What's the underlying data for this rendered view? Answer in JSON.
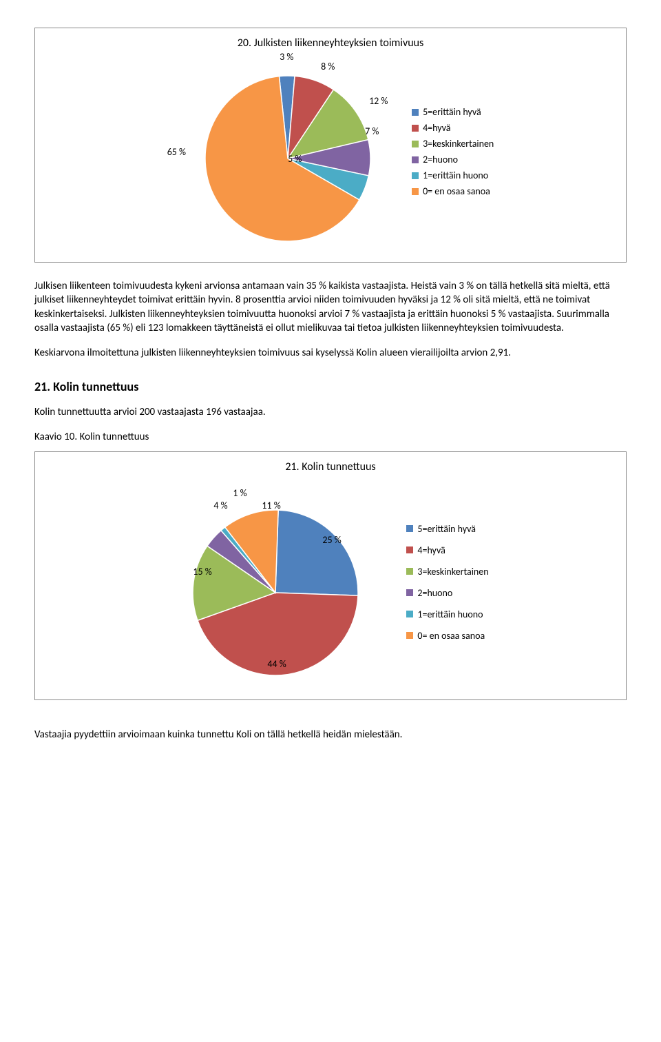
{
  "chart1": {
    "title": "20. Julkisten liikenneyhteyksien toimivuus",
    "type": "pie",
    "slices": [
      {
        "label": "3 %",
        "value": 3,
        "color": "#4f81bd"
      },
      {
        "label": "8 %",
        "value": 8,
        "color": "#c0504d"
      },
      {
        "label": "12 %",
        "value": 12,
        "color": "#9bbb59"
      },
      {
        "label": "7 %",
        "value": 7,
        "color": "#8064a2"
      },
      {
        "label": "5 %",
        "value": 5,
        "color": "#4bacc6"
      },
      {
        "label": "65 %",
        "value": 65,
        "color": "#f79646"
      }
    ],
    "legend": [
      {
        "label": "5=erittäin hyvä",
        "color": "#4f81bd"
      },
      {
        "label": "4=hyvä",
        "color": "#c0504d"
      },
      {
        "label": "3=keskinkertainen",
        "color": "#9bbb59"
      },
      {
        "label": "2=huono",
        "color": "#8064a2"
      },
      {
        "label": "1=erittäin huono",
        "color": "#4bacc6"
      },
      {
        "label": "0= en osaa sanoa",
        "color": "#f79646"
      }
    ],
    "left_label": "65 %"
  },
  "para1": "Julkisen liikenteen toimivuudesta kykeni arvionsa antamaan vain 35 % kaikista vastaajista. Heistä vain 3 % on tällä hetkellä sitä mieltä, että julkiset liikenneyhteydet toimivat erittäin hyvin. 8 prosenttia arvioi niiden toimivuuden hyväksi ja 12 % oli sitä mieltä, että ne toimivat keskinkertaiseksi. Julkisten liikenneyhteyksien toimivuutta huonoksi arvioi 7 % vastaajista ja erittäin huonoksi 5 % vastaajista. Suurimmalla osalla vastaajista (65 %) eli 123 lomakkeen täyttäneistä ei ollut mielikuvaa tai tietoa julkisten liikenneyhteyksien toimivuudesta.",
  "para2": "Keskiarvona ilmoitettuna julkisten liikenneyhteyksien toimivuus sai kyselyssä Kolin alueen vierailijoilta arvion 2,91.",
  "heading21": "21. Kolin tunnettuus",
  "para3": "Kolin tunnettuutta arvioi 200 vastaajasta 196 vastaajaa.",
  "caption10": "Kaavio 10. Kolin tunnettuus",
  "chart2": {
    "title": "21. Kolin tunnettuus",
    "type": "pie",
    "slices": [
      {
        "label": "25 %",
        "value": 25,
        "color": "#4f81bd"
      },
      {
        "label": "44 %",
        "value": 44,
        "color": "#c0504d"
      },
      {
        "label": "15 %",
        "value": 15,
        "color": "#9bbb59"
      },
      {
        "label": "4 %",
        "value": 4,
        "color": "#8064a2"
      },
      {
        "label": "1 %",
        "value": 1,
        "color": "#4bacc6"
      },
      {
        "label": "11 %",
        "value": 11,
        "color": "#f79646"
      }
    ],
    "legend": [
      {
        "label": "5=erittäin hyvä",
        "color": "#4f81bd"
      },
      {
        "label": "4=hyvä",
        "color": "#c0504d"
      },
      {
        "label": "3=keskinkertainen",
        "color": "#9bbb59"
      },
      {
        "label": "2=huono",
        "color": "#8064a2"
      },
      {
        "label": "1=erittäin huono",
        "color": "#4bacc6"
      },
      {
        "label": "0= en osaa sanoa",
        "color": "#f79646"
      }
    ]
  },
  "para4": "Vastaajia pyydettiin arvioimaan kuinka tunnettu Koli on tällä hetkellä heidän mielestään."
}
